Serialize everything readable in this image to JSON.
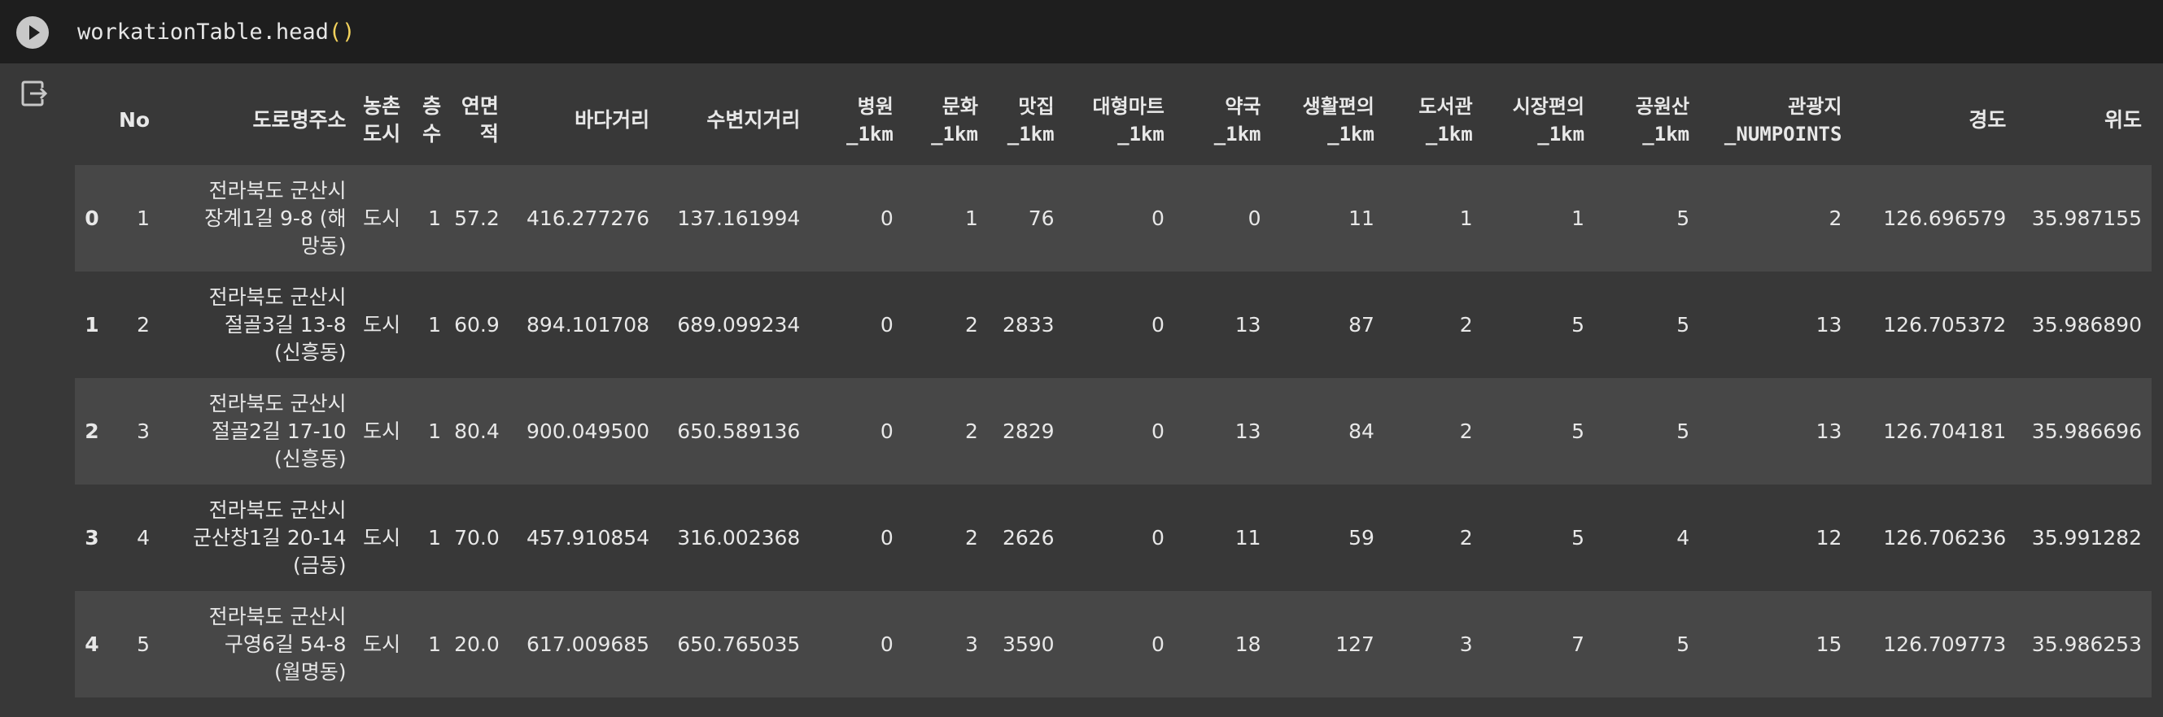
{
  "cell": {
    "code_prefix": "workationTable.head",
    "code_open": "(",
    "code_close": ")"
  },
  "table": {
    "columns": [
      {
        "id": "index",
        "lines": [
          ""
        ]
      },
      {
        "id": "no",
        "lines": [
          "No"
        ]
      },
      {
        "id": "addr",
        "lines": [
          "도로명주소"
        ]
      },
      {
        "id": "rural",
        "lines": [
          "농촌",
          "도시"
        ]
      },
      {
        "id": "floor",
        "lines": [
          "층",
          "수"
        ]
      },
      {
        "id": "area",
        "lines": [
          "연면",
          "적"
        ]
      },
      {
        "id": "sea",
        "lines": [
          "바다거리"
        ]
      },
      {
        "id": "water",
        "lines": [
          "수변지거리"
        ]
      },
      {
        "id": "hospital",
        "lines": [
          "병원",
          "_1km"
        ]
      },
      {
        "id": "culture",
        "lines": [
          "문화",
          "_1km"
        ]
      },
      {
        "id": "food",
        "lines": [
          "맛집",
          "_1km"
        ]
      },
      {
        "id": "mart",
        "lines": [
          "대형마트",
          "_1km"
        ]
      },
      {
        "id": "pharmacy",
        "lines": [
          "약국",
          "_1km"
        ]
      },
      {
        "id": "conv",
        "lines": [
          "생활편의",
          "_1km"
        ]
      },
      {
        "id": "library",
        "lines": [
          "도서관",
          "_1km"
        ]
      },
      {
        "id": "market",
        "lines": [
          "시장편의",
          "_1km"
        ]
      },
      {
        "id": "park",
        "lines": [
          "공원산",
          "_1km"
        ]
      },
      {
        "id": "tour",
        "lines": [
          "관광지",
          "_NUMPOINTS"
        ]
      },
      {
        "id": "lon",
        "lines": [
          "경도"
        ]
      },
      {
        "id": "lat",
        "lines": [
          "위도"
        ]
      }
    ],
    "rows": [
      {
        "index": "0",
        "no": "1",
        "addr": [
          "전라북도 군산시",
          "장계1길 9-8 (해",
          "망동)"
        ],
        "rural": "도시",
        "floor": "1",
        "area": "57.2",
        "sea": "416.277276",
        "water": "137.161994",
        "hospital": "0",
        "culture": "1",
        "food": "76",
        "mart": "0",
        "pharmacy": "0",
        "conv": "11",
        "library": "1",
        "market": "1",
        "park": "5",
        "tour": "2",
        "lon": "126.696579",
        "lat": "35.987155"
      },
      {
        "index": "1",
        "no": "2",
        "addr": [
          "전라북도 군산시",
          "절골3길 13-8",
          "(신흥동)"
        ],
        "rural": "도시",
        "floor": "1",
        "area": "60.9",
        "sea": "894.101708",
        "water": "689.099234",
        "hospital": "0",
        "culture": "2",
        "food": "2833",
        "mart": "0",
        "pharmacy": "13",
        "conv": "87",
        "library": "2",
        "market": "5",
        "park": "5",
        "tour": "13",
        "lon": "126.705372",
        "lat": "35.986890"
      },
      {
        "index": "2",
        "no": "3",
        "addr": [
          "전라북도 군산시",
          "절골2길 17-10",
          "(신흥동)"
        ],
        "rural": "도시",
        "floor": "1",
        "area": "80.4",
        "sea": "900.049500",
        "water": "650.589136",
        "hospital": "0",
        "culture": "2",
        "food": "2829",
        "mart": "0",
        "pharmacy": "13",
        "conv": "84",
        "library": "2",
        "market": "5",
        "park": "5",
        "tour": "13",
        "lon": "126.704181",
        "lat": "35.986696"
      },
      {
        "index": "3",
        "no": "4",
        "addr": [
          "전라북도 군산시",
          "군산창1길 20-14",
          "(금동)"
        ],
        "rural": "도시",
        "floor": "1",
        "area": "70.0",
        "sea": "457.910854",
        "water": "316.002368",
        "hospital": "0",
        "culture": "2",
        "food": "2626",
        "mart": "0",
        "pharmacy": "11",
        "conv": "59",
        "library": "2",
        "market": "5",
        "park": "4",
        "tour": "12",
        "lon": "126.706236",
        "lat": "35.991282"
      },
      {
        "index": "4",
        "no": "5",
        "addr": [
          "전라북도 군산시",
          "구영6길 54-8",
          "(월명동)"
        ],
        "rural": "도시",
        "floor": "1",
        "area": "20.0",
        "sea": "617.009685",
        "water": "650.765035",
        "hospital": "0",
        "culture": "3",
        "food": "3590",
        "mart": "0",
        "pharmacy": "18",
        "conv": "127",
        "library": "3",
        "market": "7",
        "park": "5",
        "tour": "15",
        "lon": "126.709773",
        "lat": "35.986253"
      }
    ]
  }
}
